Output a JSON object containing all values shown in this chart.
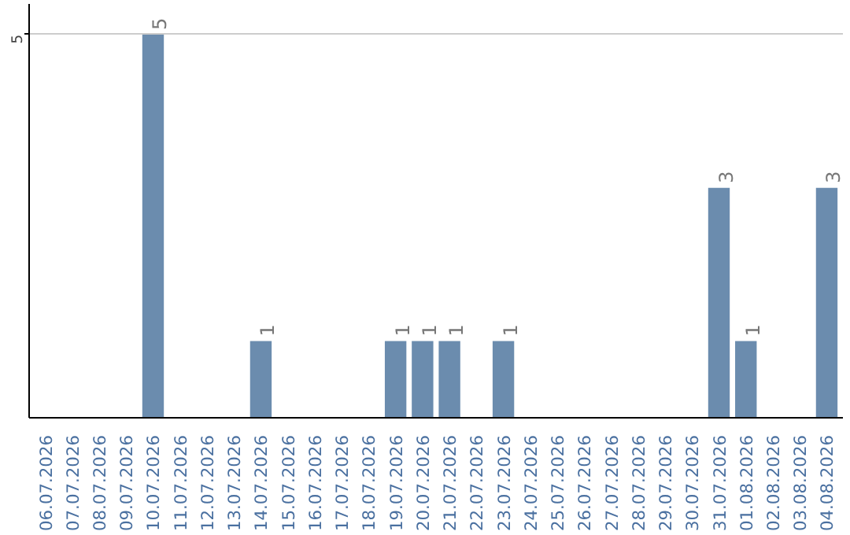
{
  "chart_data": {
    "type": "bar",
    "categories": [
      "06.07.2026",
      "07.07.2026",
      "08.07.2026",
      "09.07.2026",
      "10.07.2026",
      "11.07.2026",
      "12.07.2026",
      "13.07.2026",
      "14.07.2026",
      "15.07.2026",
      "16.07.2026",
      "17.07.2026",
      "18.07.2026",
      "19.07.2026",
      "20.07.2026",
      "21.07.2026",
      "22.07.2026",
      "23.07.2026",
      "24.07.2026",
      "25.07.2026",
      "26.07.2026",
      "27.07.2026",
      "28.07.2026",
      "29.07.2026",
      "30.07.2026",
      "31.07.2026",
      "01.08.2026",
      "02.08.2026",
      "03.08.2026",
      "04.08.2026"
    ],
    "values": [
      0,
      0,
      0,
      0,
      5,
      0,
      0,
      0,
      1,
      0,
      0,
      0,
      0,
      1,
      1,
      1,
      0,
      1,
      0,
      0,
      0,
      0,
      0,
      0,
      0,
      3,
      1,
      0,
      0,
      3
    ],
    "value_labels": [
      null,
      null,
      null,
      null,
      "5",
      null,
      null,
      null,
      "1",
      null,
      null,
      null,
      null,
      "1",
      "1",
      "1",
      null,
      "1",
      null,
      null,
      null,
      null,
      null,
      null,
      null,
      "3",
      "1",
      null,
      null,
      "3"
    ],
    "color": "#6b8cae",
    "ylim": [
      0,
      5.4
    ],
    "yticks": [
      5
    ],
    "grid": "y"
  }
}
